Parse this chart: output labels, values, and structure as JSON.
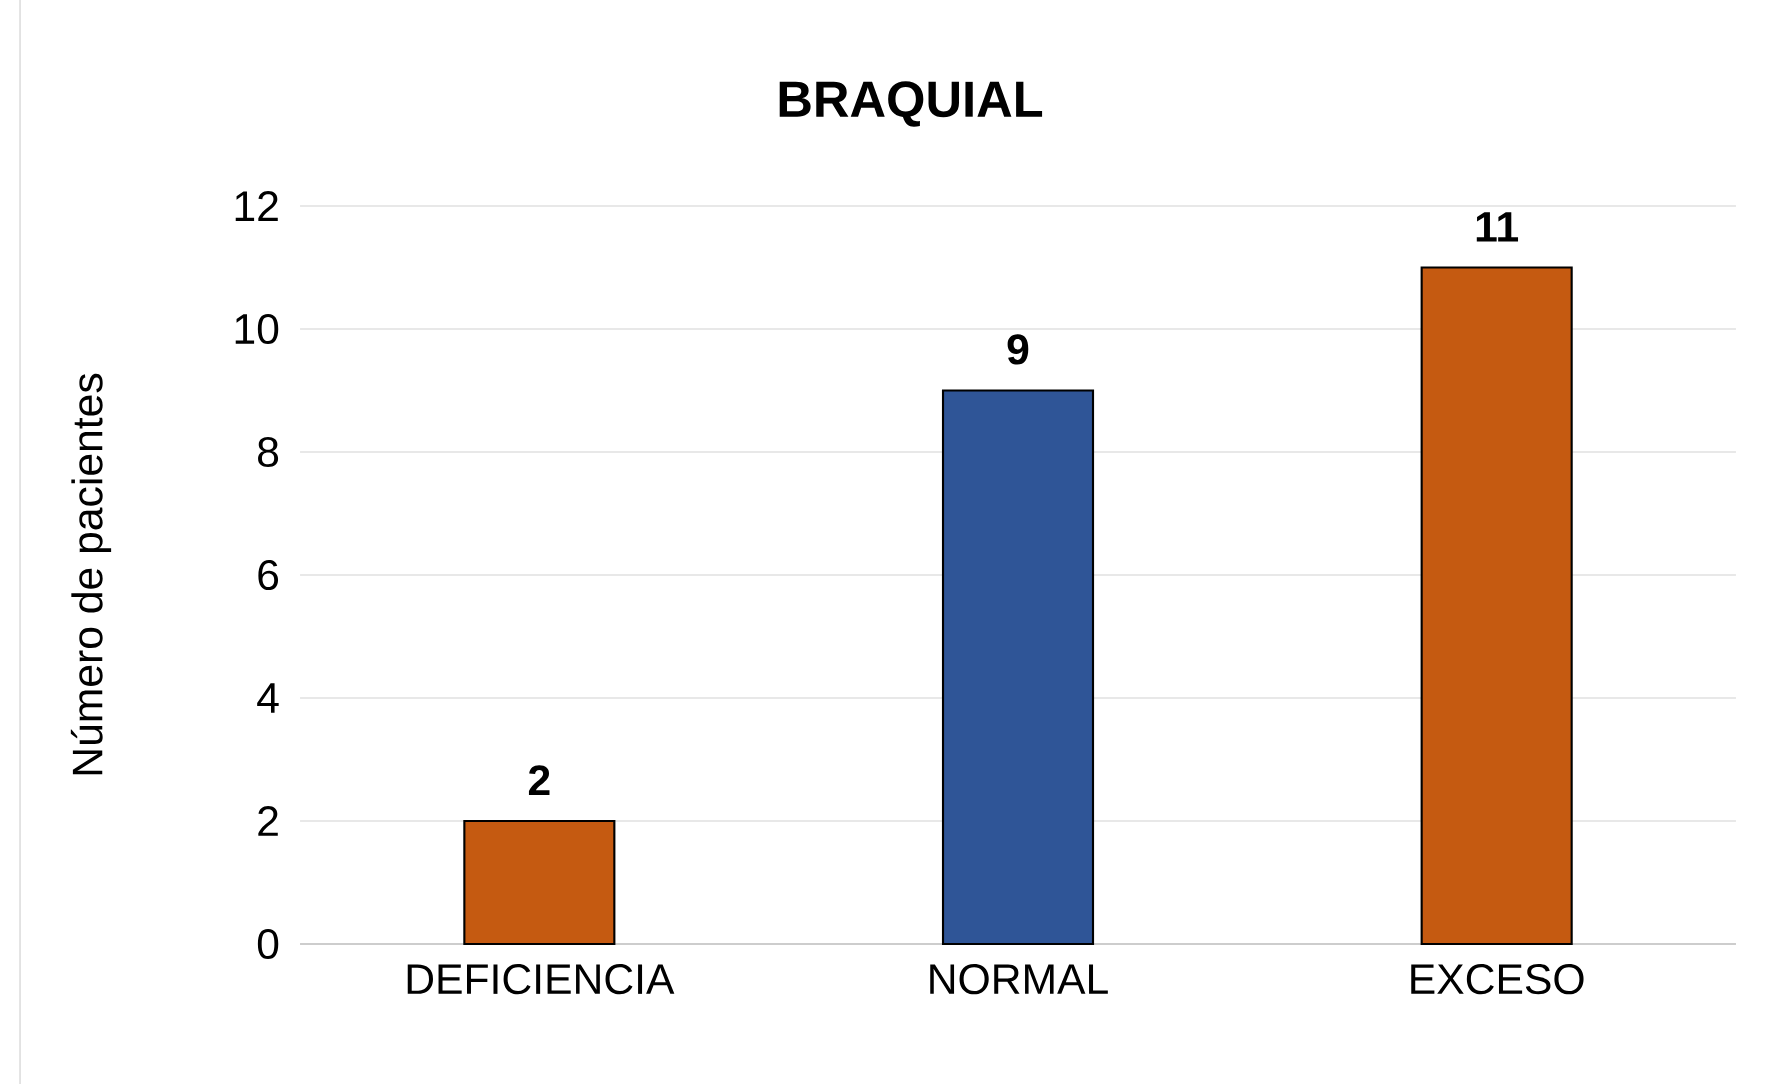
{
  "chart_data": {
    "type": "bar",
    "title": "BRAQUIAL",
    "ylabel": "Número de pacientes",
    "categories": [
      "DEFICIENCIA",
      "NORMAL",
      "EXCESO"
    ],
    "values": [
      2,
      9,
      11
    ],
    "colors": [
      "#c55a11",
      "#2f5597",
      "#c55a11"
    ],
    "ylim": [
      0,
      12
    ],
    "yticks": [
      0,
      2,
      4,
      6,
      8,
      10,
      12
    ],
    "grid": "y",
    "data_labels": true
  }
}
